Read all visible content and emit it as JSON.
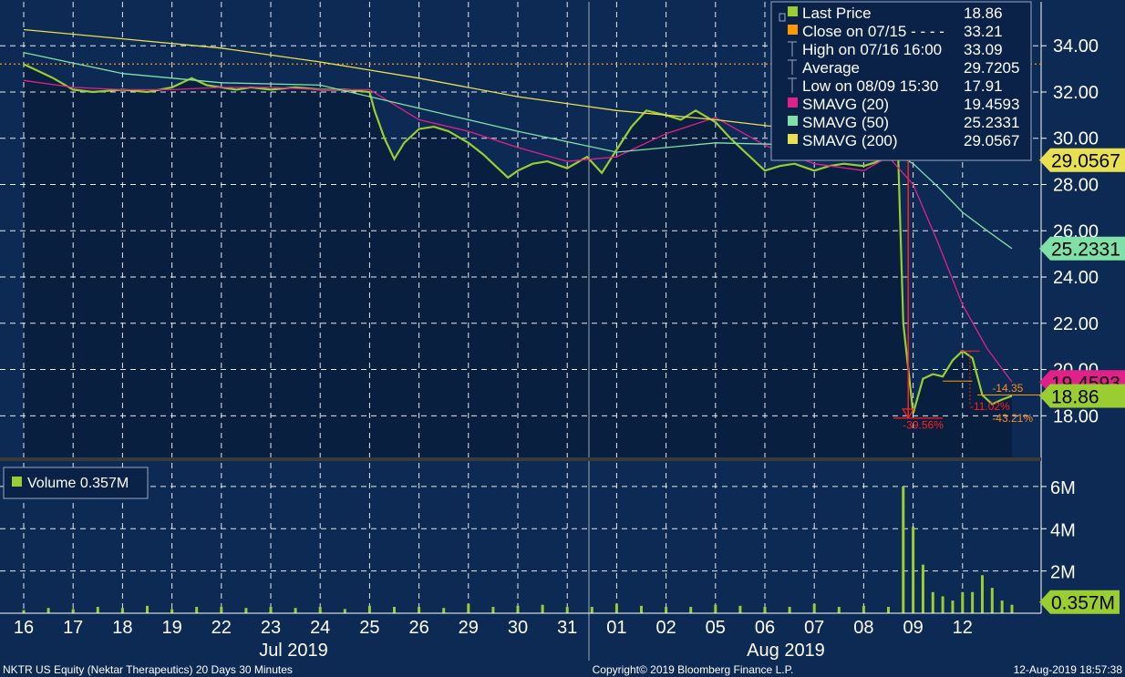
{
  "footer": {
    "left": "NKTR US Equity (Nektar Therapeutics) 20 Days 30 Minutes",
    "center": "Copyright© 2019 Bloomberg Finance L.P.",
    "right": "12-Aug-2019 18:57:38"
  },
  "colors": {
    "background": "#0d2a55",
    "price_fill": "#081f40",
    "price_line": "#9acd32",
    "close_line": "#ff9900",
    "sma20": "#e0218a",
    "sma50": "#7fe0a8",
    "sma200": "#e8e050",
    "grid": "#ffffff",
    "annotation": "#ff2020",
    "annotation_text": "#ff8c1a"
  },
  "legend": {
    "items": [
      {
        "label": "Last Price",
        "value": "18.86",
        "swatch": "#9acd32"
      },
      {
        "label": "Close on 07/15 - - - -",
        "value": "33.21",
        "swatch": "#ff9900"
      },
      {
        "label": "High on 07/16 16:00",
        "value": "33.09",
        "swatch": ""
      },
      {
        "label": "Average",
        "value": "29.7205",
        "swatch": ""
      },
      {
        "label": "Low on 08/09 15:30",
        "value": "17.91",
        "swatch": ""
      },
      {
        "label": "SMAVG (20)",
        "value": "19.4593",
        "swatch": "#e0218a"
      },
      {
        "label": "SMAVG (50)",
        "value": "25.2331",
        "swatch": "#7fe0a8"
      },
      {
        "label": "SMAVG (200)",
        "value": "29.0567",
        "swatch": "#e8e050"
      }
    ]
  },
  "volume_legend": {
    "label": "Volume 0.357M",
    "swatch": "#9acd32"
  },
  "chart_data": {
    "type": "line",
    "x_tick_labels": [
      "16",
      "17",
      "18",
      "19",
      "22",
      "23",
      "24",
      "25",
      "26",
      "29",
      "30",
      "31",
      "01",
      "02",
      "05",
      "06",
      "07",
      "08",
      "09",
      "12"
    ],
    "month_labels": [
      "Jul 2019",
      "Aug 2019"
    ],
    "price_axis": {
      "ylim": [
        16.2,
        35.9
      ],
      "ticks": [
        "18.00",
        "20.00",
        "22.00",
        "24.00",
        "26.00",
        "28.00",
        "30.00",
        "32.00",
        "34.00"
      ]
    },
    "volume_axis": {
      "ylim": [
        0,
        6.6
      ],
      "ticks": [
        "2M",
        "4M",
        "6M"
      ]
    },
    "price_tags": [
      {
        "label": "29.0567",
        "value": 29.0567,
        "color": "#e8e050"
      },
      {
        "label": "25.2331",
        "value": 25.2331,
        "color": "#7fe0a8"
      },
      {
        "label": "19.4593",
        "value": 19.4593,
        "color": "#e0218a"
      },
      {
        "label": "18.86",
        "value": 18.86,
        "color": "#9acd32"
      }
    ],
    "volume_tag": {
      "label": "0.357M",
      "value": 0.357,
      "color": "#9acd32"
    },
    "close_line_value": 33.21,
    "series": [
      {
        "name": "Last Price",
        "color": "#9acd32",
        "x": [
          0,
          0.3,
          0.6,
          1,
          1.4,
          2,
          2.5,
          3,
          3.4,
          3.7,
          4,
          4.3,
          4.6,
          5,
          5.5,
          6,
          6.5,
          7,
          7.1,
          7.3,
          7.5,
          7.7,
          8,
          8.3,
          8.6,
          9,
          9.3,
          9.5,
          9.8,
          10,
          10.3,
          10.6,
          11,
          11.4,
          11.7,
          12,
          12.3,
          12.6,
          13,
          13.3,
          13.6,
          14,
          14.3,
          14.6,
          15,
          15.3,
          15.6,
          16,
          16.3,
          16.6,
          17,
          17.3,
          17.5,
          17.6,
          17.7,
          17.8,
          18,
          18.2,
          18.4,
          18.6,
          18.8,
          19,
          19.2,
          19.4,
          19.6,
          19.8,
          20
        ],
        "values": [
          33.2,
          32.9,
          32.6,
          32.1,
          32.0,
          32.1,
          32.0,
          32.2,
          32.6,
          32.3,
          32.2,
          32.1,
          32.2,
          32.1,
          32.2,
          32.1,
          32.1,
          32.0,
          31.2,
          30.0,
          29.1,
          29.8,
          30.4,
          30.5,
          30.3,
          29.8,
          29.3,
          28.9,
          28.3,
          28.6,
          28.9,
          29.0,
          28.7,
          29.2,
          28.5,
          29.5,
          30.5,
          31.2,
          31.0,
          30.8,
          31.2,
          30.7,
          30.0,
          29.4,
          28.6,
          28.8,
          28.9,
          28.6,
          28.8,
          28.9,
          28.8,
          29.0,
          29.3,
          29.6,
          29.1,
          22.0,
          18.1,
          19.6,
          19.8,
          19.7,
          20.4,
          20.8,
          20.5,
          18.9,
          18.5,
          18.7,
          18.86
        ]
      },
      {
        "name": "SMAVG (20)",
        "color": "#e0218a",
        "x": [
          0,
          1,
          2,
          3,
          4,
          5,
          6,
          7,
          8,
          9,
          10,
          11,
          12,
          13,
          14,
          15,
          16,
          17,
          17.5,
          18,
          18.5,
          19,
          19.5,
          20
        ],
        "values": [
          32.5,
          32.2,
          32.1,
          32.1,
          32.2,
          32.2,
          32.1,
          32.1,
          30.8,
          30.3,
          29.6,
          29.0,
          29.2,
          30.2,
          30.9,
          29.7,
          28.9,
          28.6,
          29.2,
          28.0,
          25.5,
          22.8,
          20.9,
          19.46
        ]
      },
      {
        "name": "SMAVG (50)",
        "color": "#7fe0a8",
        "x": [
          0,
          2,
          4,
          6,
          8,
          10,
          12,
          14,
          16,
          17,
          17.5,
          18,
          18.5,
          19,
          19.5,
          20
        ],
        "values": [
          33.7,
          32.8,
          32.4,
          32.3,
          31.3,
          30.3,
          29.4,
          29.8,
          29.7,
          29.6,
          29.5,
          28.9,
          27.9,
          26.8,
          26.0,
          25.23
        ]
      },
      {
        "name": "SMAVG (200)",
        "color": "#e8e050",
        "x": [
          0,
          2,
          4,
          6,
          8,
          10,
          12,
          14,
          16,
          17,
          18,
          18.5,
          19,
          19.5,
          20
        ],
        "values": [
          34.7,
          34.3,
          33.9,
          33.3,
          32.6,
          31.8,
          31.2,
          30.8,
          30.3,
          30.1,
          29.8,
          29.6,
          29.5,
          29.3,
          29.06
        ]
      }
    ],
    "volume": {
      "name": "Volume",
      "x": [
        0,
        0.5,
        1,
        1.5,
        2,
        2.5,
        3,
        3.5,
        4,
        4.5,
        5,
        5.5,
        6,
        6.5,
        7,
        7.5,
        8,
        8.5,
        9,
        9.5,
        10,
        10.5,
        11,
        11.5,
        12,
        12.5,
        13,
        13.5,
        14,
        14.5,
        15,
        15.5,
        16,
        16.5,
        17,
        17.5,
        17.8,
        18,
        18.2,
        18.4,
        18.6,
        18.8,
        19,
        19.2,
        19.4,
        19.6,
        19.8,
        20
      ],
      "values": [
        0.15,
        0.25,
        0.2,
        0.3,
        0.25,
        0.35,
        0.2,
        0.3,
        0.3,
        0.25,
        0.3,
        0.25,
        0.3,
        0.2,
        0.35,
        0.3,
        0.3,
        0.25,
        0.45,
        0.3,
        0.35,
        0.4,
        0.3,
        0.3,
        0.45,
        0.35,
        0.3,
        0.3,
        0.4,
        0.35,
        0.3,
        0.3,
        0.45,
        0.3,
        0.35,
        0.3,
        6.0,
        4.1,
        2.3,
        1.0,
        0.8,
        0.6,
        1.0,
        1.0,
        1.8,
        1.2,
        0.6,
        0.4
      ]
    },
    "annotations": [
      {
        "label": "-39.56%",
        "x": 17.9,
        "y": 17.6
      },
      {
        "label": "-11.02%",
        "x": 19.15,
        "y": 18.4
      },
      {
        "label": "-14.35",
        "x": 19.6,
        "y": 19.2
      },
      {
        "label": "-43.21%",
        "x": 19.6,
        "y": 17.9
      }
    ]
  }
}
